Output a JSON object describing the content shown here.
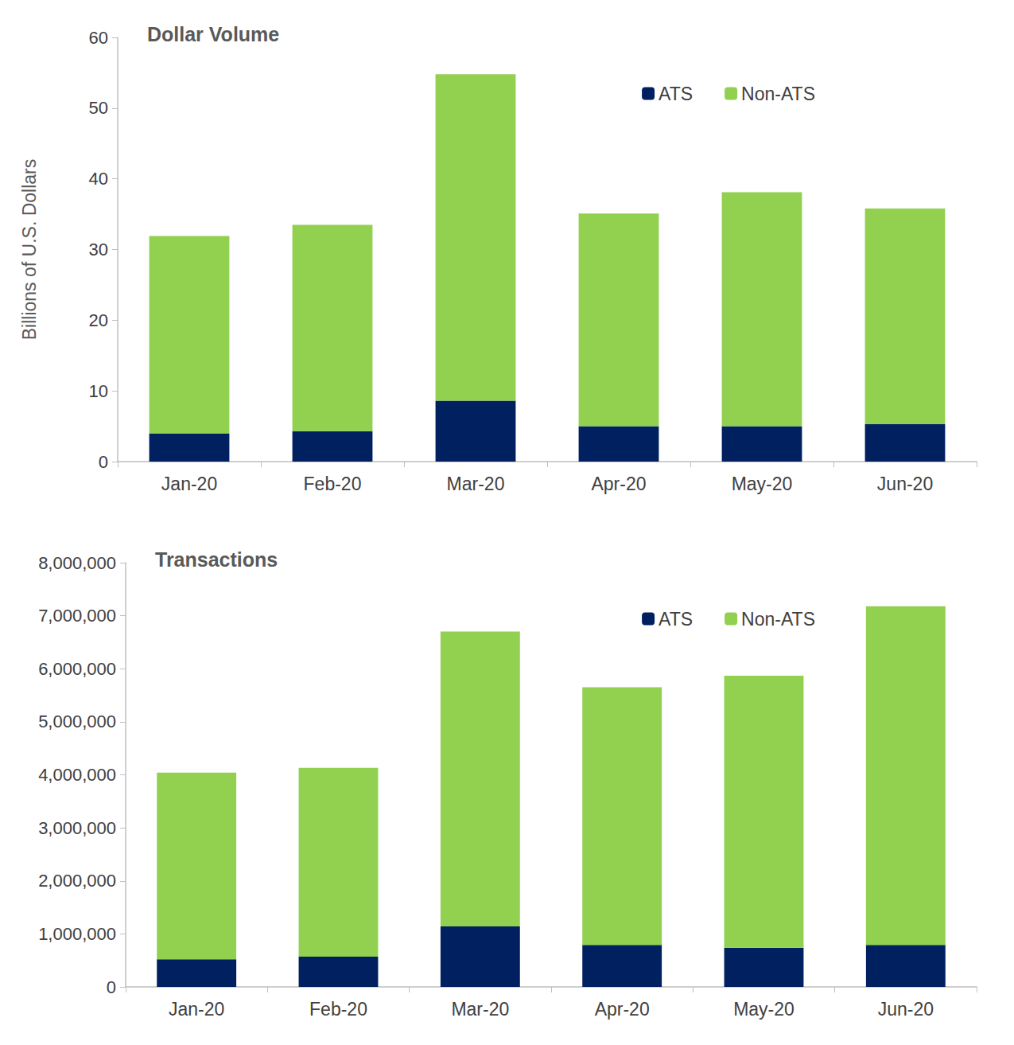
{
  "chart_data": [
    {
      "type": "bar",
      "title": "Dollar Volume",
      "ylabel": "Billions of U.S. Dollars",
      "categories": [
        "Jan-20",
        "Feb-20",
        "Mar-20",
        "Apr-20",
        "May-20",
        "Jun-20"
      ],
      "series": [
        {
          "name": "ATS",
          "color": "#002060",
          "values": [
            4.0,
            4.3,
            8.6,
            5.0,
            5.0,
            5.3
          ]
        },
        {
          "name": "Non-ATS",
          "color": "#92d050",
          "values": [
            27.9,
            29.2,
            46.2,
            30.1,
            33.1,
            30.5
          ]
        }
      ],
      "ylim": [
        0,
        60
      ],
      "yticks": [
        0,
        10,
        20,
        30,
        40,
        50,
        60
      ],
      "stacked": true,
      "legend": "top-right",
      "grid": false
    },
    {
      "type": "bar",
      "title": "Transactions",
      "categories": [
        "Jan-20",
        "Feb-20",
        "Mar-20",
        "Apr-20",
        "May-20",
        "Jun-20"
      ],
      "series": [
        {
          "name": "ATS",
          "color": "#002060",
          "values": [
            520000,
            570000,
            1140000,
            790000,
            740000,
            790000
          ]
        },
        {
          "name": "Non-ATS",
          "color": "#92d050",
          "values": [
            3520000,
            3560000,
            5560000,
            4860000,
            5130000,
            6390000
          ]
        }
      ],
      "ylim": [
        0,
        8000000
      ],
      "yticks": [
        0,
        {
          "value": 1000000,
          "label": "1,000,000"
        },
        {
          "value": 2000000,
          "label": "2,000,000"
        },
        {
          "value": 3000000,
          "label": "3,000,000"
        },
        {
          "value": 4000000,
          "label": "4,000,000"
        },
        {
          "value": 5000000,
          "label": "5,000,000"
        },
        {
          "value": 6000000,
          "label": "6,000,000"
        },
        {
          "value": 7000000,
          "label": "7,000,000"
        },
        {
          "value": 8000000,
          "label": "8,000,000"
        }
      ],
      "stacked": true,
      "legend": "top-right",
      "grid": false
    }
  ]
}
